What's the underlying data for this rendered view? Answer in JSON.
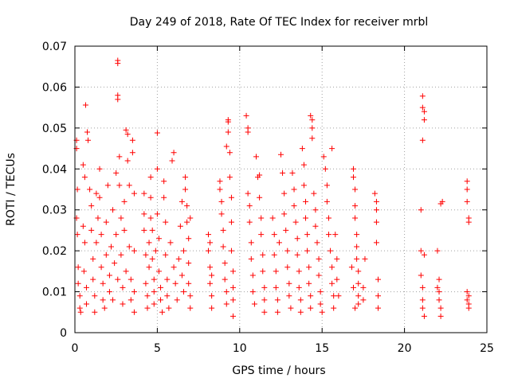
{
  "chart_data": {
    "type": "scatter",
    "title": "Day 249 of 2018, Rate Of TEC Index for receiver mrbl",
    "xlabel": "GPS time / hours",
    "ylabel": "ROTI / TECUs",
    "xlim": [
      0,
      25
    ],
    "ylim": [
      0,
      0.07
    ],
    "xticks": [
      0,
      5,
      10,
      15,
      20,
      25
    ],
    "yticks": [
      0,
      0.01,
      0.02,
      0.03,
      0.04,
      0.05,
      0.06,
      0.07
    ],
    "xtick_labels": [
      "0",
      "5",
      "10",
      "15",
      "20",
      "25"
    ],
    "ytick_labels": [
      "0",
      "0.01",
      "0.02",
      "0.03",
      "0.04",
      "0.05",
      "0.06",
      "0.07"
    ],
    "grid": true,
    "marker": "+",
    "marker_color": "#ff0000",
    "series": [
      {
        "name": "ROTI",
        "points": [
          [
            0.1,
            0.047
          ],
          [
            0.1,
            0.045
          ],
          [
            0.15,
            0.035
          ],
          [
            0.1,
            0.028
          ],
          [
            0.15,
            0.024
          ],
          [
            0.2,
            0.016
          ],
          [
            0.2,
            0.012
          ],
          [
            0.3,
            0.009
          ],
          [
            0.3,
            0.006
          ],
          [
            0.35,
            0.005
          ],
          [
            0.5,
            0.041
          ],
          [
            0.6,
            0.038
          ],
          [
            0.5,
            0.026
          ],
          [
            0.6,
            0.022
          ],
          [
            0.55,
            0.015
          ],
          [
            0.7,
            0.011
          ],
          [
            0.7,
            0.007
          ],
          [
            0.65,
            0.0556
          ],
          [
            0.75,
            0.049
          ],
          [
            0.8,
            0.047
          ],
          [
            0.9,
            0.035
          ],
          [
            1.0,
            0.031
          ],
          [
            1.0,
            0.025
          ],
          [
            1.1,
            0.018
          ],
          [
            1.1,
            0.013
          ],
          [
            1.2,
            0.009
          ],
          [
            1.2,
            0.005
          ],
          [
            1.3,
            0.022
          ],
          [
            1.3,
            0.034
          ],
          [
            1.4,
            0.028
          ],
          [
            1.5,
            0.04
          ],
          [
            1.5,
            0.033
          ],
          [
            1.6,
            0.024
          ],
          [
            1.6,
            0.016
          ],
          [
            1.7,
            0.012
          ],
          [
            1.7,
            0.008
          ],
          [
            1.8,
            0.006
          ],
          [
            1.9,
            0.019
          ],
          [
            1.9,
            0.027
          ],
          [
            2.0,
            0.036
          ],
          [
            2.1,
            0.014
          ],
          [
            2.1,
            0.01
          ],
          [
            2.2,
            0.021
          ],
          [
            2.3,
            0.03
          ],
          [
            2.3,
            0.008
          ],
          [
            2.4,
            0.017
          ],
          [
            2.5,
            0.039
          ],
          [
            2.5,
            0.024
          ],
          [
            2.6,
            0.013
          ],
          [
            2.6,
            0.0665
          ],
          [
            2.6,
            0.0658
          ],
          [
            2.6,
            0.058
          ],
          [
            2.6,
            0.057
          ],
          [
            2.7,
            0.043
          ],
          [
            2.7,
            0.036
          ],
          [
            2.8,
            0.028
          ],
          [
            2.8,
            0.019
          ],
          [
            2.9,
            0.011
          ],
          [
            2.9,
            0.007
          ],
          [
            3.0,
            0.032
          ],
          [
            3.0,
            0.025
          ],
          [
            3.1,
            0.015
          ],
          [
            3.1,
            0.0495
          ],
          [
            3.2,
            0.0485
          ],
          [
            3.2,
            0.042
          ],
          [
            3.3,
            0.036
          ],
          [
            3.3,
            0.021
          ],
          [
            3.4,
            0.013
          ],
          [
            3.4,
            0.008
          ],
          [
            3.5,
            0.047
          ],
          [
            3.5,
            0.044
          ],
          [
            3.6,
            0.034
          ],
          [
            3.6,
            0.02
          ],
          [
            3.6,
            0.01
          ],
          [
            3.6,
            0.005
          ],
          [
            4.2,
            0.034
          ],
          [
            4.2,
            0.029
          ],
          [
            4.2,
            0.025
          ],
          [
            4.3,
            0.019
          ],
          [
            4.3,
            0.012
          ],
          [
            4.4,
            0.009
          ],
          [
            4.4,
            0.006
          ],
          [
            4.5,
            0.022
          ],
          [
            4.5,
            0.016
          ],
          [
            4.6,
            0.038
          ],
          [
            4.6,
            0.033
          ],
          [
            4.6,
            0.028
          ],
          [
            4.7,
            0.025
          ],
          [
            4.7,
            0.018
          ],
          [
            4.8,
            0.013
          ],
          [
            4.8,
            0.01
          ],
          [
            4.8,
            0.007
          ],
          [
            4.9,
            0.02
          ],
          [
            5.0,
            0.0488
          ],
          [
            5.0,
            0.04
          ],
          [
            5.0,
            0.029
          ],
          [
            5.1,
            0.023
          ],
          [
            5.1,
            0.015
          ],
          [
            5.2,
            0.011
          ],
          [
            5.2,
            0.008
          ],
          [
            5.3,
            0.005
          ],
          [
            5.4,
            0.037
          ],
          [
            5.4,
            0.033
          ],
          [
            5.5,
            0.027
          ],
          [
            5.5,
            0.019
          ],
          [
            5.6,
            0.013
          ],
          [
            5.6,
            0.009
          ],
          [
            5.7,
            0.006
          ],
          [
            5.8,
            0.022
          ],
          [
            5.9,
            0.042
          ],
          [
            6.0,
            0.044
          ],
          [
            6.0,
            0.016
          ],
          [
            6.1,
            0.012
          ],
          [
            6.2,
            0.008
          ],
          [
            6.3,
            0.018
          ],
          [
            6.4,
            0.026
          ],
          [
            6.5,
            0.032
          ],
          [
            6.5,
            0.014
          ],
          [
            6.6,
            0.01
          ],
          [
            6.6,
            0.02
          ],
          [
            6.7,
            0.038
          ],
          [
            6.7,
            0.035
          ],
          [
            6.8,
            0.031
          ],
          [
            6.8,
            0.027
          ],
          [
            6.9,
            0.023
          ],
          [
            6.9,
            0.017
          ],
          [
            6.9,
            0.012
          ],
          [
            7.0,
            0.009
          ],
          [
            7.0,
            0.006
          ],
          [
            7.0,
            0.028
          ],
          [
            8.1,
            0.024
          ],
          [
            8.1,
            0.02
          ],
          [
            8.2,
            0.016
          ],
          [
            8.2,
            0.012
          ],
          [
            8.3,
            0.009
          ],
          [
            8.3,
            0.006
          ],
          [
            8.2,
            0.022
          ],
          [
            8.3,
            0.014
          ],
          [
            8.8,
            0.037
          ],
          [
            8.8,
            0.035
          ],
          [
            8.9,
            0.032
          ],
          [
            8.9,
            0.029
          ],
          [
            9.0,
            0.025
          ],
          [
            9.0,
            0.021
          ],
          [
            9.1,
            0.017
          ],
          [
            9.1,
            0.013
          ],
          [
            9.2,
            0.01
          ],
          [
            9.2,
            0.007
          ],
          [
            9.2,
            0.0455
          ],
          [
            9.3,
            0.052
          ],
          [
            9.3,
            0.0515
          ],
          [
            9.3,
            0.049
          ],
          [
            9.4,
            0.044
          ],
          [
            9.4,
            0.038
          ],
          [
            9.5,
            0.033
          ],
          [
            9.5,
            0.027
          ],
          [
            9.5,
            0.02
          ],
          [
            9.6,
            0.015
          ],
          [
            9.6,
            0.011
          ],
          [
            9.6,
            0.008
          ],
          [
            9.6,
            0.004
          ],
          [
            10.4,
            0.053
          ],
          [
            10.5,
            0.05
          ],
          [
            10.5,
            0.049
          ],
          [
            10.5,
            0.034
          ],
          [
            10.6,
            0.031
          ],
          [
            10.6,
            0.027
          ],
          [
            10.7,
            0.022
          ],
          [
            10.7,
            0.018
          ],
          [
            10.8,
            0.014
          ],
          [
            10.8,
            0.01
          ],
          [
            10.9,
            0.007
          ],
          [
            11.0,
            0.043
          ],
          [
            11.1,
            0.038
          ],
          [
            11.2,
            0.0385
          ],
          [
            11.2,
            0.033
          ],
          [
            11.3,
            0.028
          ],
          [
            11.3,
            0.024
          ],
          [
            11.4,
            0.019
          ],
          [
            11.4,
            0.015
          ],
          [
            11.5,
            0.011
          ],
          [
            11.5,
            0.008
          ],
          [
            11.5,
            0.005
          ],
          [
            12.0,
            0.028
          ],
          [
            12.1,
            0.024
          ],
          [
            12.1,
            0.019
          ],
          [
            12.2,
            0.015
          ],
          [
            12.2,
            0.011
          ],
          [
            12.3,
            0.008
          ],
          [
            12.3,
            0.005
          ],
          [
            12.4,
            0.022
          ],
          [
            12.5,
            0.0435
          ],
          [
            12.6,
            0.039
          ],
          [
            12.7,
            0.034
          ],
          [
            12.7,
            0.029
          ],
          [
            12.8,
            0.025
          ],
          [
            12.9,
            0.02
          ],
          [
            12.9,
            0.016
          ],
          [
            13.0,
            0.012
          ],
          [
            13.0,
            0.009
          ],
          [
            13.1,
            0.006
          ],
          [
            13.2,
            0.039
          ],
          [
            13.3,
            0.035
          ],
          [
            13.3,
            0.031
          ],
          [
            13.4,
            0.027
          ],
          [
            13.5,
            0.023
          ],
          [
            13.5,
            0.019
          ],
          [
            13.6,
            0.015
          ],
          [
            13.6,
            0.011
          ],
          [
            13.7,
            0.008
          ],
          [
            13.7,
            0.005
          ],
          [
            13.8,
            0.045
          ],
          [
            13.9,
            0.041
          ],
          [
            13.9,
            0.036
          ],
          [
            14.0,
            0.032
          ],
          [
            14.0,
            0.028
          ],
          [
            14.1,
            0.024
          ],
          [
            14.1,
            0.02
          ],
          [
            14.2,
            0.016
          ],
          [
            14.2,
            0.012
          ],
          [
            14.3,
            0.009
          ],
          [
            14.3,
            0.006
          ],
          [
            14.3,
            0.053
          ],
          [
            14.4,
            0.052
          ],
          [
            14.4,
            0.05
          ],
          [
            14.4,
            0.0475
          ],
          [
            14.5,
            0.034
          ],
          [
            14.6,
            0.03
          ],
          [
            14.6,
            0.026
          ],
          [
            14.7,
            0.022
          ],
          [
            14.8,
            0.018
          ],
          [
            14.8,
            0.014
          ],
          [
            14.9,
            0.01
          ],
          [
            14.9,
            0.007
          ],
          [
            15.0,
            0.005
          ],
          [
            15.1,
            0.043
          ],
          [
            15.2,
            0.04
          ],
          [
            15.3,
            0.036
          ],
          [
            15.3,
            0.032
          ],
          [
            15.4,
            0.028
          ],
          [
            15.4,
            0.024
          ],
          [
            15.5,
            0.02
          ],
          [
            15.6,
            0.016
          ],
          [
            15.6,
            0.012
          ],
          [
            15.7,
            0.009
          ],
          [
            15.7,
            0.006
          ],
          [
            15.6,
            0.045
          ],
          [
            15.8,
            0.024
          ],
          [
            15.9,
            0.018
          ],
          [
            15.9,
            0.013
          ],
          [
            16.0,
            0.009
          ],
          [
            16.9,
            0.04
          ],
          [
            16.9,
            0.038
          ],
          [
            17.0,
            0.035
          ],
          [
            17.0,
            0.031
          ],
          [
            17.0,
            0.028
          ],
          [
            17.1,
            0.024
          ],
          [
            17.1,
            0.021
          ],
          [
            17.1,
            0.018
          ],
          [
            17.2,
            0.015
          ],
          [
            17.2,
            0.012
          ],
          [
            17.2,
            0.009
          ],
          [
            17.2,
            0.007
          ],
          [
            16.8,
            0.016
          ],
          [
            16.9,
            0.011
          ],
          [
            17.0,
            0.006
          ],
          [
            17.5,
            0.011
          ],
          [
            17.5,
            0.008
          ],
          [
            17.6,
            0.018
          ],
          [
            18.2,
            0.034
          ],
          [
            18.3,
            0.032
          ],
          [
            18.3,
            0.03
          ],
          [
            18.3,
            0.027
          ],
          [
            18.3,
            0.022
          ],
          [
            18.4,
            0.013
          ],
          [
            18.4,
            0.009
          ],
          [
            18.4,
            0.006
          ],
          [
            21.0,
            0.03
          ],
          [
            21.0,
            0.02
          ],
          [
            21.1,
            0.047
          ],
          [
            21.1,
            0.0578
          ],
          [
            21.1,
            0.055
          ],
          [
            21.2,
            0.054
          ],
          [
            21.2,
            0.052
          ],
          [
            21.0,
            0.014
          ],
          [
            21.1,
            0.011
          ],
          [
            21.1,
            0.008
          ],
          [
            21.1,
            0.006
          ],
          [
            21.2,
            0.004
          ],
          [
            21.2,
            0.019
          ],
          [
            22.0,
            0.02
          ],
          [
            22.1,
            0.013
          ],
          [
            22.1,
            0.01
          ],
          [
            22.1,
            0.008
          ],
          [
            22.2,
            0.006
          ],
          [
            22.2,
            0.004
          ],
          [
            22.2,
            0.0315
          ],
          [
            22.3,
            0.032
          ],
          [
            22.0,
            0.011
          ],
          [
            23.8,
            0.037
          ],
          [
            23.8,
            0.035
          ],
          [
            23.8,
            0.032
          ],
          [
            23.9,
            0.028
          ],
          [
            23.9,
            0.027
          ],
          [
            23.8,
            0.01
          ],
          [
            23.8,
            0.008
          ],
          [
            23.9,
            0.007
          ],
          [
            23.9,
            0.006
          ],
          [
            23.9,
            0.009
          ]
        ]
      }
    ]
  }
}
